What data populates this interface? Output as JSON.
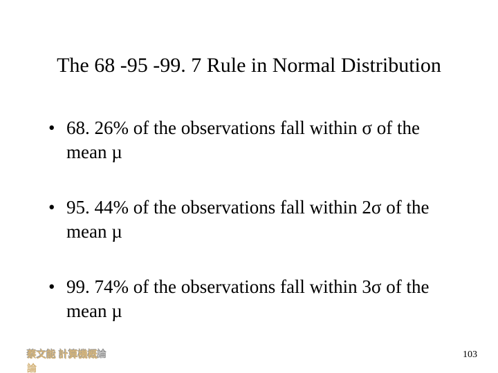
{
  "title": "The 68 -95 -99. 7 Rule in Normal Distribution",
  "bullets": [
    {
      "pct": "68. 26%",
      "rest": " of the observations fall within σ of the mean µ"
    },
    {
      "pct": "95. 44%",
      "rest": " of the observations fall within 2σ of the mean µ"
    },
    {
      "pct": "99. 74%",
      "rest": " of the observations fall within 3σ of the mean µ"
    }
  ],
  "footer": {
    "author": "蔡文能 計算機概論",
    "pagenum": "103"
  },
  "style": {
    "title_fontsize": 30,
    "body_fontsize": 27,
    "footer_fontsize": 14,
    "text_color": "#000000",
    "background_color": "#ffffff",
    "footer_shadow_color": "#969696",
    "footer_main_color": "#d3b37a",
    "bullet_marker": "•"
  }
}
